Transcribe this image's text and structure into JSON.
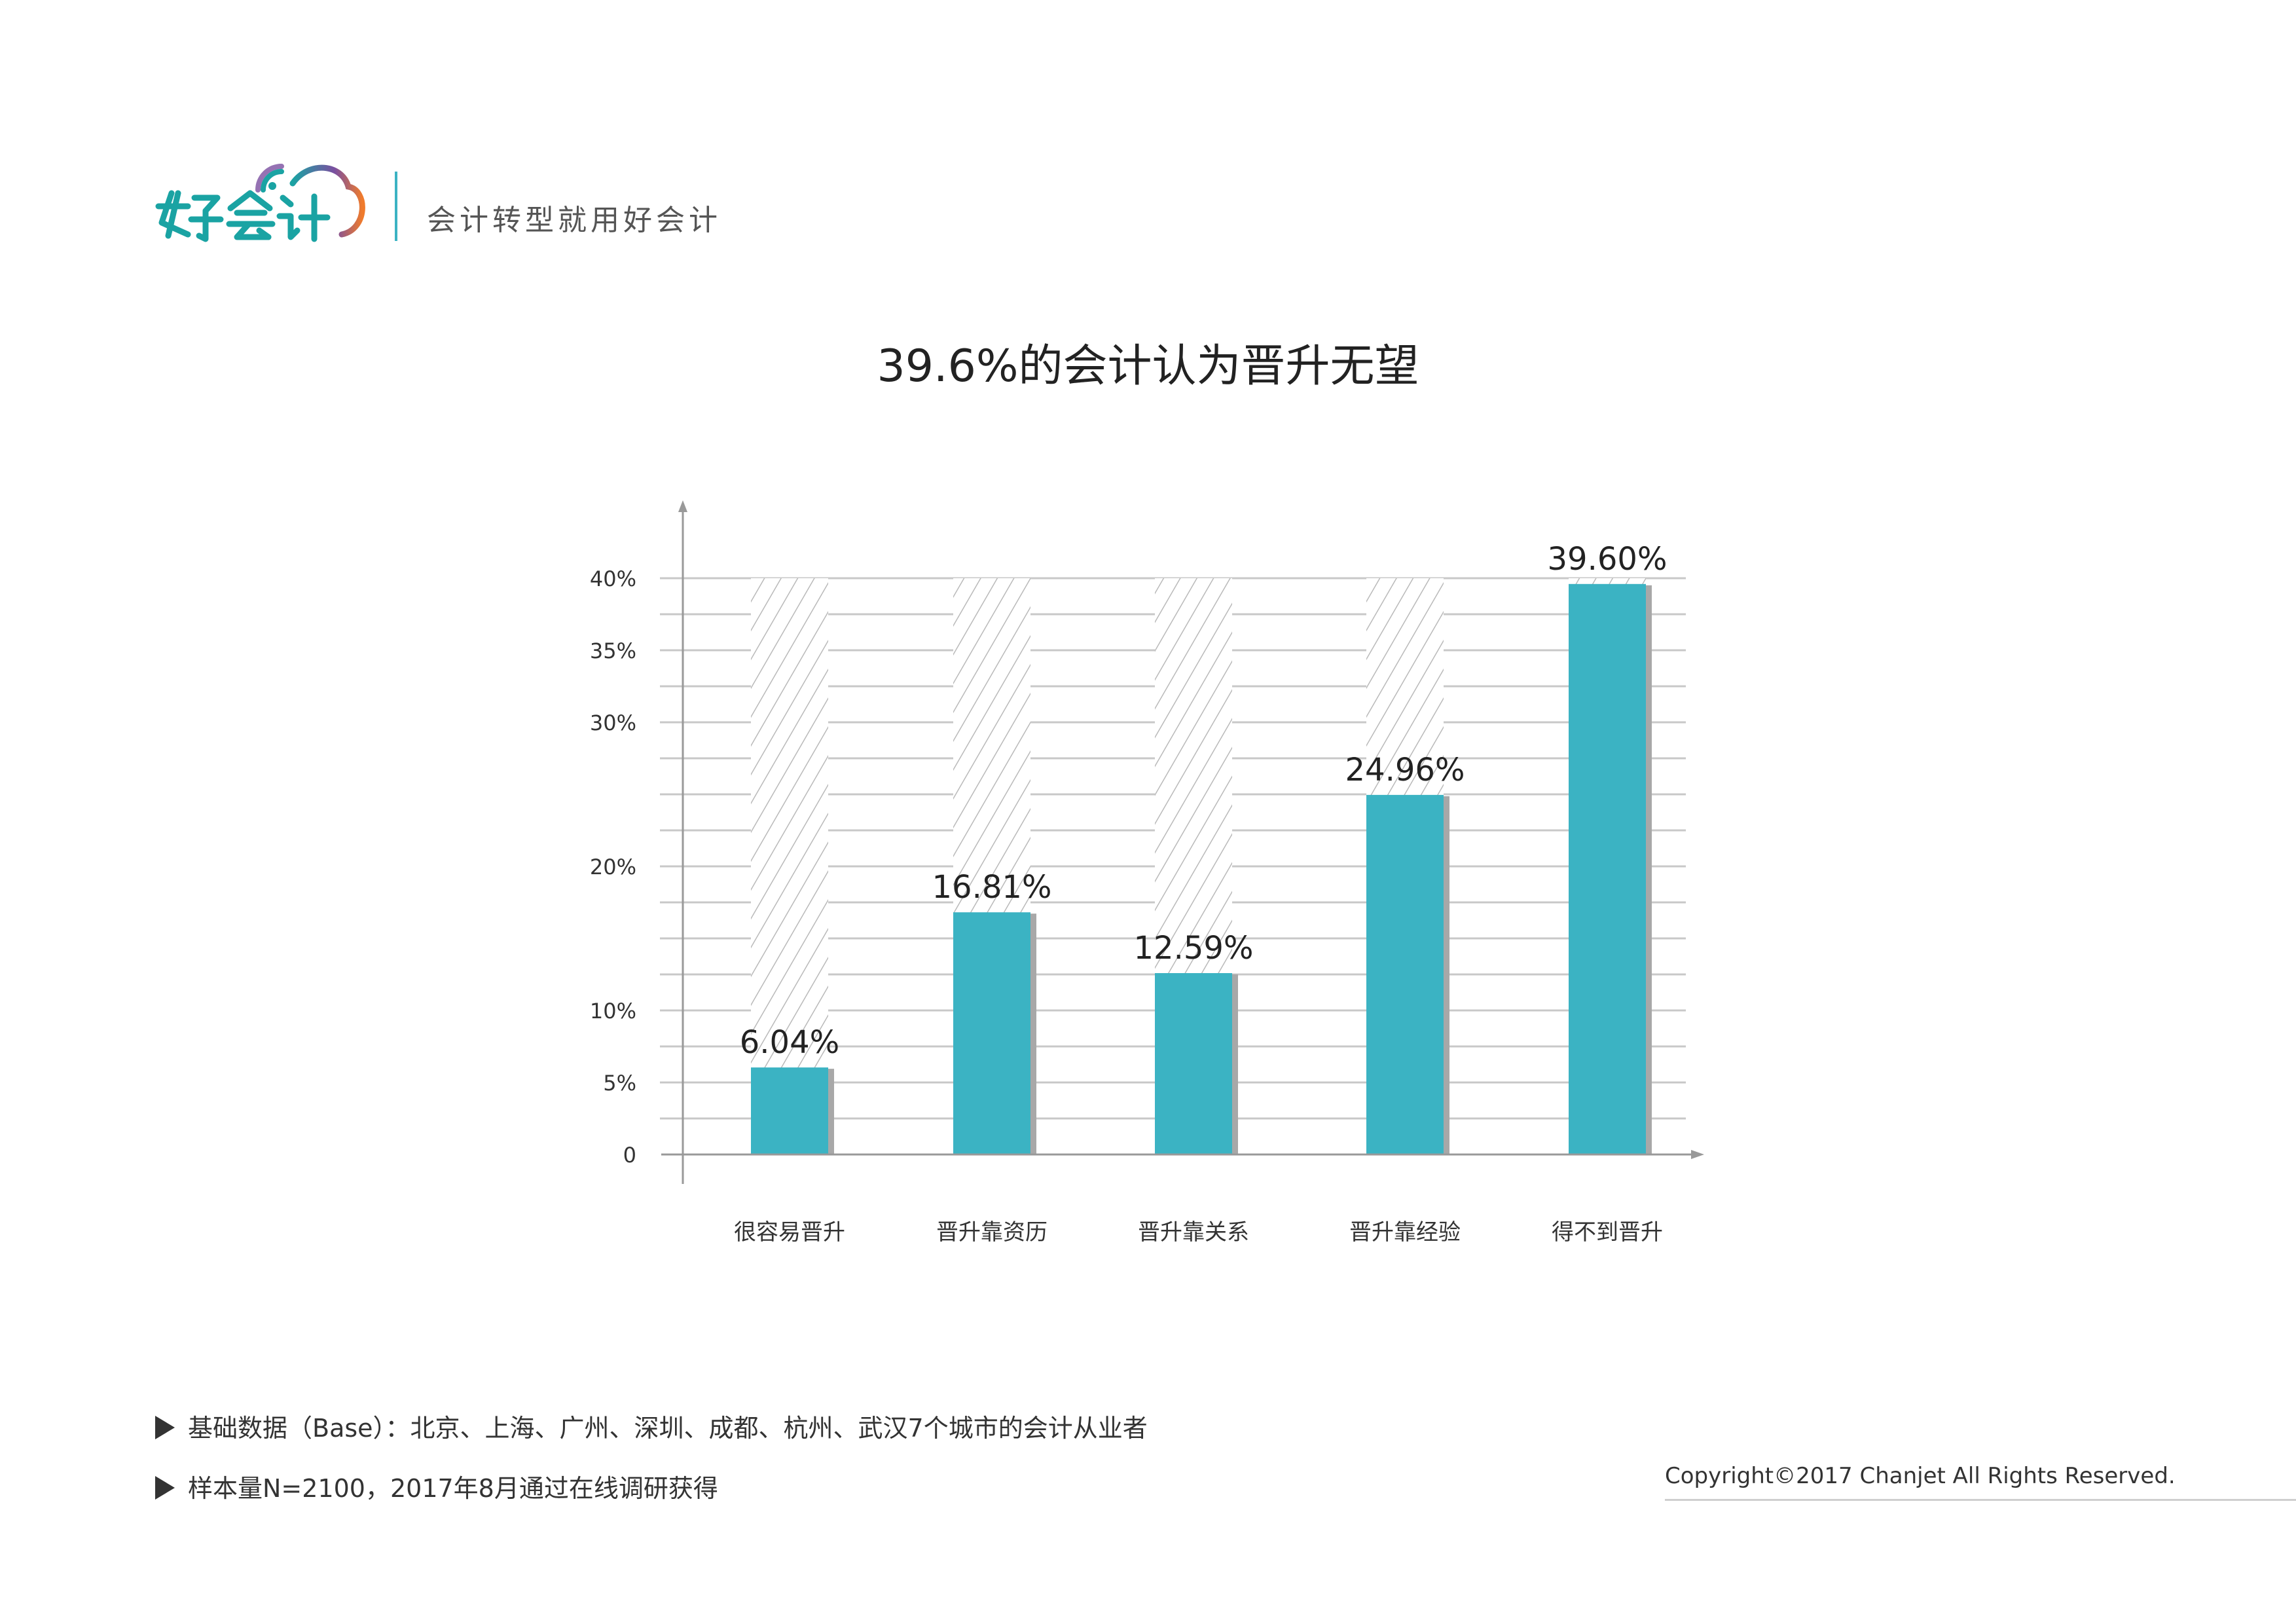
{
  "header": {
    "logo_text": "好会计",
    "slogan": "会计转型就用好会计"
  },
  "colors": {
    "bar": "#3bb3c3",
    "bar_shadow": "#a8a8a8",
    "hatch": "#b9b9b9",
    "grid": "#c8c8c8",
    "logo_green": "#1aa3a3",
    "logo_purple": "#7a4fa0",
    "logo_orange": "#f07b2c"
  },
  "chart_data": {
    "type": "bar",
    "title": "39.6%的会计认为晋升无望",
    "categories": [
      "很容易晋升",
      "晋升靠资历",
      "晋升靠关系",
      "晋升靠经验",
      "得不到晋升"
    ],
    "values": [
      6.04,
      16.81,
      12.59,
      24.96,
      39.6
    ],
    "data_labels": [
      "6.04%",
      "16.81%",
      "12.59%",
      "24.96%",
      "39.60%"
    ],
    "y_ticks": [
      {
        "value": 0,
        "label": "0"
      },
      {
        "value": 5,
        "label": "5%"
      },
      {
        "value": 10,
        "label": "10%"
      },
      {
        "value": 20,
        "label": "20%"
      },
      {
        "value": 30,
        "label": "30%"
      },
      {
        "value": 35,
        "label": "35%"
      },
      {
        "value": 40,
        "label": "40%"
      }
    ],
    "ylim": [
      0,
      40
    ],
    "background_bars": "hatched to 40%",
    "grid": true,
    "legend": "none"
  },
  "footer": {
    "notes": [
      "基础数据（Base）：北京、上海、广州、深圳、成都、杭州、武汉7个城市的会计从业者",
      "样本量N=2100，2017年8月通过在线调研获得"
    ],
    "copyright": "Copyright©2017 Chanjet All Rights Reserved."
  }
}
